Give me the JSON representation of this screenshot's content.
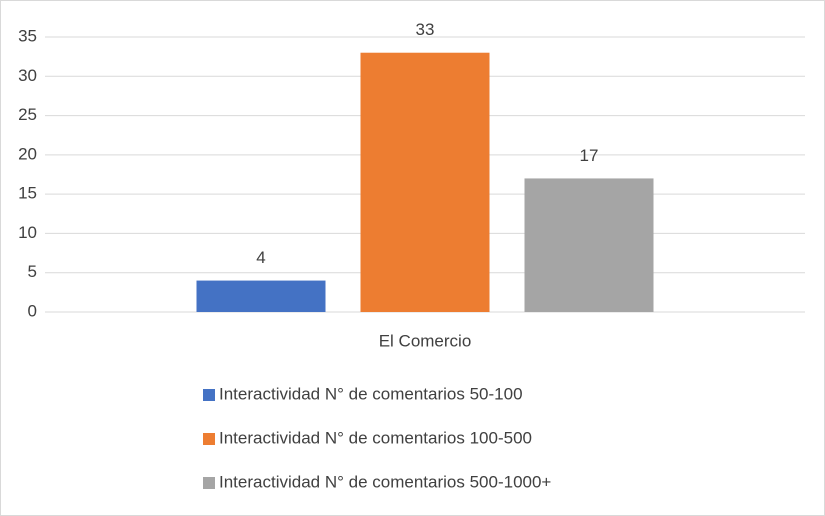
{
  "chart_data": {
    "type": "bar",
    "categories": [
      "El Comercio"
    ],
    "series": [
      {
        "name": "Interactividad N° de comentarios 50-100",
        "color": "#4472c4",
        "values": [
          4
        ]
      },
      {
        "name": "Interactividad N° de comentarios 100-500",
        "color": "#ed7d31",
        "values": [
          33
        ]
      },
      {
        "name": "Interactividad N° de comentarios 500-1000+",
        "color": "#a5a5a5",
        "values": [
          17
        ]
      }
    ],
    "ylim": [
      0,
      35
    ],
    "yticks": [
      0,
      5,
      10,
      15,
      20,
      25,
      30,
      35
    ],
    "grid": true,
    "data_labels": true,
    "legend": "bottom"
  }
}
